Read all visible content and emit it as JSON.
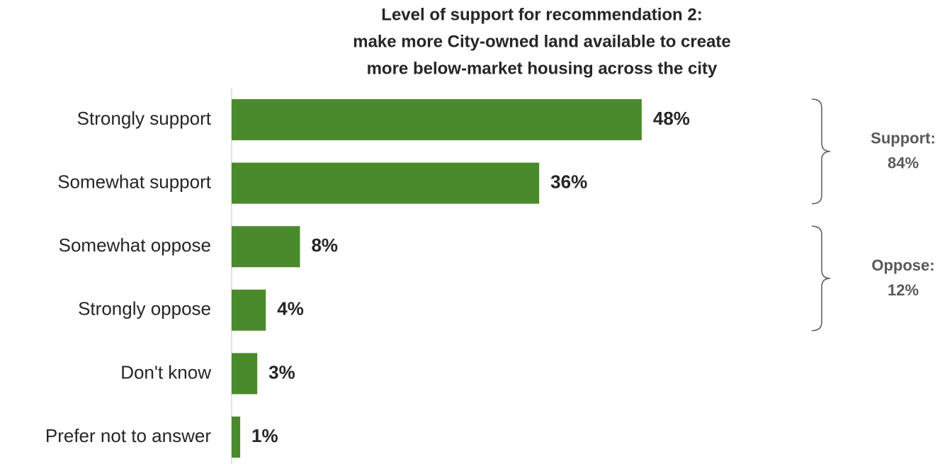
{
  "chart_data": {
    "type": "bar",
    "orientation": "horizontal",
    "title": [
      "Level of support for recommendation 2:",
      "make more City-owned land available to create",
      "more below-market housing across the city"
    ],
    "categories": [
      "Strongly support",
      "Somewhat support",
      "Somewhat oppose",
      "Strongly oppose",
      "Don't know",
      "Prefer not to answer"
    ],
    "values": [
      48,
      36,
      8,
      4,
      3,
      1
    ],
    "value_labels": [
      "48%",
      "36%",
      "8%",
      "4%",
      "3%",
      "1%"
    ],
    "color": "#4a8a2c",
    "annotations": [
      {
        "label": "Support:",
        "value": 84,
        "value_label": "84%"
      },
      {
        "label": "Oppose:",
        "value": 12,
        "value_label": "12%"
      }
    ]
  }
}
